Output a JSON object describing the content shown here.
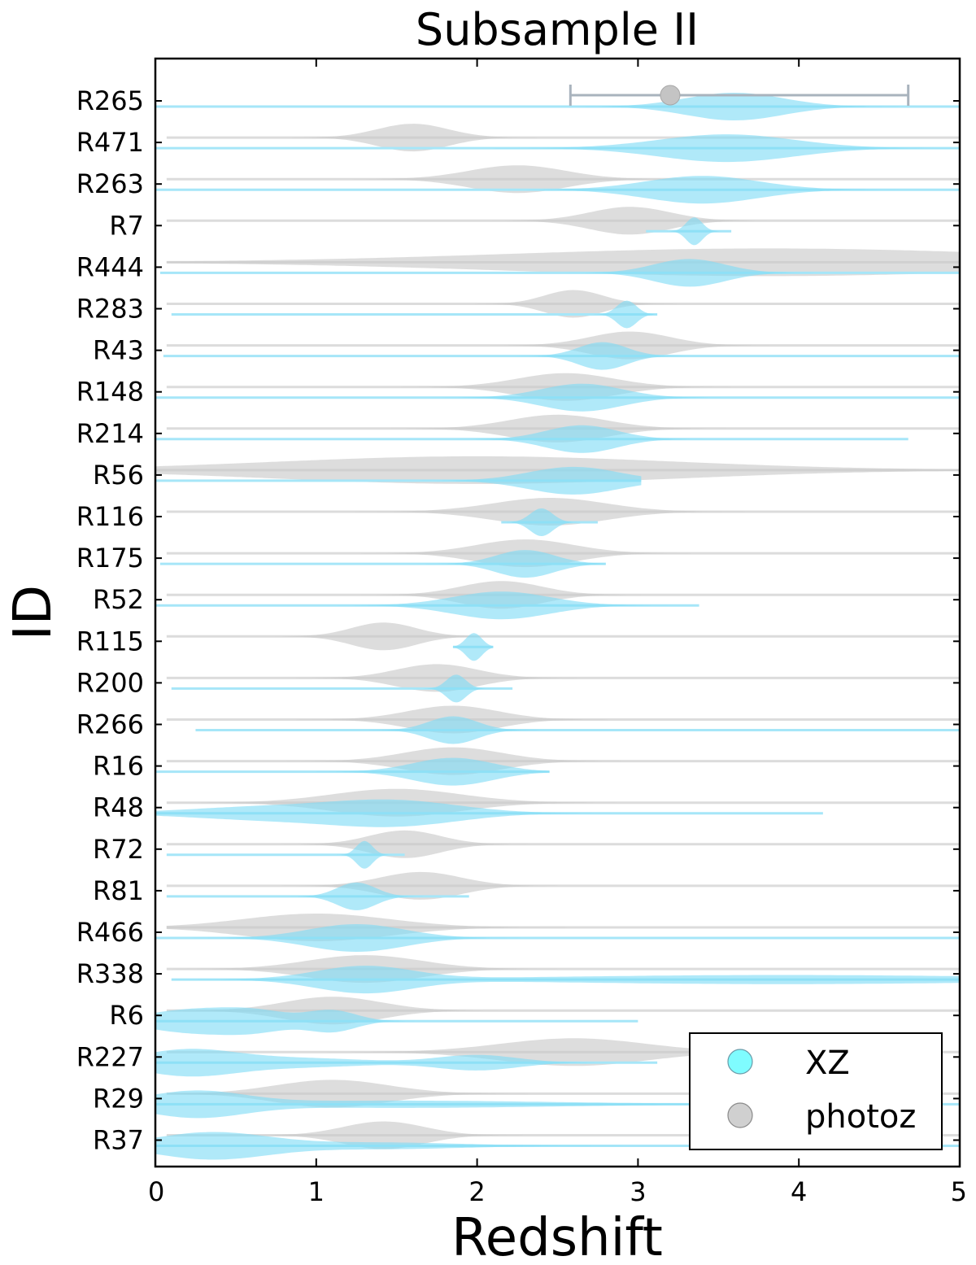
{
  "chart_data": {
    "type": "violin",
    "title": "Subsample II",
    "xlabel": "Redshift",
    "ylabel": "ID",
    "xlim": [
      0,
      5
    ],
    "xticks": [
      "0",
      "1",
      "2",
      "3",
      "4",
      "5"
    ],
    "grid": false,
    "legend_position": "bottom-right",
    "series": [
      {
        "name": "XZ",
        "color": "#7fdcf5"
      },
      {
        "name": "photoz",
        "color": "#c8c8c8"
      }
    ],
    "example_errorbar": {
      "center": 3.2,
      "low": 2.58,
      "high": 4.68
    },
    "rows": [
      {
        "id": "R265",
        "photoz": null,
        "xz": {
          "min": 0.0,
          "max": 5.0,
          "peaks": [
            [
              3.6,
              0.3,
              1.0
            ]
          ]
        }
      },
      {
        "id": "R471",
        "photoz": {
          "min": 0.07,
          "max": 5.0,
          "peaks": [
            [
              1.6,
              0.22,
              1.0
            ]
          ]
        },
        "xz": {
          "min": 0.0,
          "max": 5.0,
          "peaks": [
            [
              3.55,
              0.42,
              1.0
            ]
          ]
        }
      },
      {
        "id": "R263",
        "photoz": {
          "min": 0.07,
          "max": 5.0,
          "peaks": [
            [
              2.25,
              0.3,
              1.0
            ]
          ]
        },
        "xz": {
          "min": 0.0,
          "max": 5.0,
          "peaks": [
            [
              3.4,
              0.35,
              1.0
            ]
          ]
        }
      },
      {
        "id": "R7",
        "photoz": {
          "min": 0.07,
          "max": 5.0,
          "peaks": [
            [
              2.95,
              0.25,
              1.0
            ]
          ]
        },
        "xz": {
          "min": 3.05,
          "max": 3.58,
          "peaks": [
            [
              3.35,
              0.05,
              1.0
            ]
          ]
        }
      },
      {
        "id": "R444",
        "photoz": {
          "min": 0.07,
          "max": 5.0,
          "peaks": [
            [
              3.8,
              1.6,
              1.0
            ]
          ]
        },
        "xz": {
          "min": 0.03,
          "max": 5.0,
          "peaks": [
            [
              3.32,
              0.22,
              1.0
            ]
          ]
        }
      },
      {
        "id": "R283",
        "photoz": {
          "min": 0.07,
          "max": 5.0,
          "peaks": [
            [
              2.6,
              0.18,
              1.0
            ]
          ]
        },
        "xz": {
          "min": 0.1,
          "max": 3.12,
          "peaks": [
            [
              2.93,
              0.06,
              1.0
            ]
          ]
        }
      },
      {
        "id": "R43",
        "photoz": {
          "min": 0.07,
          "max": 5.0,
          "peaks": [
            [
              2.95,
              0.25,
              1.0
            ]
          ]
        },
        "xz": {
          "min": 0.05,
          "max": 5.0,
          "peaks": [
            [
              2.78,
              0.15,
              1.0
            ]
          ]
        }
      },
      {
        "id": "R148",
        "photoz": {
          "min": 0.07,
          "max": 5.0,
          "peaks": [
            [
              2.55,
              0.3,
              1.0
            ]
          ]
        },
        "xz": {
          "min": 0.0,
          "max": 5.0,
          "peaks": [
            [
              2.65,
              0.25,
              1.0
            ]
          ]
        }
      },
      {
        "id": "R214",
        "photoz": {
          "min": 0.07,
          "max": 5.0,
          "peaks": [
            [
              2.5,
              0.3,
              1.0
            ]
          ]
        },
        "xz": {
          "min": 0.0,
          "max": 4.68,
          "peaks": [
            [
              2.65,
              0.22,
              1.0
            ]
          ]
        }
      },
      {
        "id": "R56",
        "photoz": {
          "min": 0.0,
          "max": 5.0,
          "peaks": [
            [
              2.0,
              1.25,
              1.0
            ]
          ]
        },
        "xz": {
          "min": 0.0,
          "max": 3.02,
          "peaks": [
            [
              2.6,
              0.28,
              1.0
            ]
          ]
        }
      },
      {
        "id": "R116",
        "photoz": {
          "min": 0.07,
          "max": 5.0,
          "peaks": [
            [
              2.45,
              0.35,
              1.0
            ]
          ]
        },
        "xz": {
          "min": 2.15,
          "max": 2.75,
          "peaks": [
            [
              2.4,
              0.07,
              1.0
            ]
          ]
        }
      },
      {
        "id": "R175",
        "photoz": {
          "min": 0.07,
          "max": 5.0,
          "peaks": [
            [
              2.3,
              0.3,
              1.0
            ]
          ]
        },
        "xz": {
          "min": 0.03,
          "max": 2.8,
          "peaks": [
            [
              2.3,
              0.18,
              1.0
            ]
          ]
        }
      },
      {
        "id": "R52",
        "photoz": {
          "min": 0.07,
          "max": 5.0,
          "peaks": [
            [
              2.15,
              0.25,
              1.0
            ]
          ]
        },
        "xz": {
          "min": 0.0,
          "max": 3.38,
          "peaks": [
            [
              2.15,
              0.3,
              1.0
            ]
          ]
        }
      },
      {
        "id": "R115",
        "photoz": {
          "min": 0.07,
          "max": 5.0,
          "peaks": [
            [
              1.42,
              0.2,
              1.0
            ]
          ]
        },
        "xz": {
          "min": 1.85,
          "max": 2.1,
          "peaks": [
            [
              1.98,
              0.05,
              1.0
            ]
          ]
        }
      },
      {
        "id": "R200",
        "photoz": {
          "min": 0.07,
          "max": 5.0,
          "peaks": [
            [
              1.75,
              0.25,
              1.0
            ]
          ]
        },
        "xz": {
          "min": 0.1,
          "max": 2.22,
          "peaks": [
            [
              1.87,
              0.06,
              1.0
            ]
          ]
        }
      },
      {
        "id": "R266",
        "photoz": {
          "min": 0.07,
          "max": 5.0,
          "peaks": [
            [
              1.85,
              0.28,
              1.0
            ]
          ]
        },
        "xz": {
          "min": 0.25,
          "max": 5.0,
          "peaks": [
            [
              1.85,
              0.15,
              1.0
            ]
          ]
        }
      },
      {
        "id": "R16",
        "photoz": {
          "min": 0.07,
          "max": 5.0,
          "peaks": [
            [
              1.85,
              0.3,
              1.0
            ]
          ]
        },
        "xz": {
          "min": 0.0,
          "max": 2.45,
          "peaks": [
            [
              1.85,
              0.25,
              1.0
            ]
          ]
        }
      },
      {
        "id": "R48",
        "photoz": {
          "min": 0.07,
          "max": 5.0,
          "peaks": [
            [
              1.5,
              0.4,
              1.0
            ]
          ]
        },
        "xz": {
          "min": 0.0,
          "max": 4.15,
          "peaks": [
            [
              1.5,
              0.4,
              1.0
            ],
            [
              0.7,
              0.5,
              0.55
            ]
          ]
        }
      },
      {
        "id": "R72",
        "photoz": {
          "min": 0.07,
          "max": 5.0,
          "peaks": [
            [
              1.55,
              0.22,
              1.0
            ]
          ]
        },
        "xz": {
          "min": 0.07,
          "max": 1.55,
          "peaks": [
            [
              1.3,
              0.05,
              1.0
            ]
          ]
        }
      },
      {
        "id": "R81",
        "photoz": {
          "min": 0.07,
          "max": 5.0,
          "peaks": [
            [
              1.65,
              0.25,
              1.0
            ]
          ]
        },
        "xz": {
          "min": 0.07,
          "max": 1.95,
          "peaks": [
            [
              1.25,
              0.12,
              1.0
            ]
          ]
        }
      },
      {
        "id": "R466",
        "photoz": {
          "min": 0.07,
          "max": 5.0,
          "peaks": [
            [
              1.0,
              0.45,
              1.0
            ]
          ]
        },
        "xz": {
          "min": 0.0,
          "max": 5.0,
          "peaks": [
            [
              1.25,
              0.3,
              1.0
            ]
          ]
        }
      },
      {
        "id": "R338",
        "photoz": {
          "min": 0.07,
          "max": 5.0,
          "peaks": [
            [
              1.3,
              0.35,
              1.0
            ]
          ]
        },
        "xz": {
          "min": 0.1,
          "max": 5.0,
          "peaks": [
            [
              1.3,
              0.3,
              1.0
            ],
            [
              3.9,
              1.4,
              0.35
            ]
          ]
        }
      },
      {
        "id": "R6",
        "photoz": {
          "min": 0.07,
          "max": 5.0,
          "peaks": [
            [
              1.1,
              0.3,
              1.0
            ]
          ]
        },
        "xz": {
          "min": 0.0,
          "max": 3.0,
          "peaks": [
            [
              0.25,
              0.3,
              0.9
            ],
            [
              1.1,
              0.15,
              0.8
            ],
            [
              0.65,
              0.2,
              0.55
            ]
          ]
        }
      },
      {
        "id": "R227",
        "photoz": {
          "min": 0.07,
          "max": 5.0,
          "peaks": [
            [
              2.6,
              0.45,
              1.0
            ]
          ]
        },
        "xz": {
          "min": 0.0,
          "max": 3.12,
          "peaks": [
            [
              0.2,
              0.3,
              1.0
            ],
            [
              2.0,
              0.25,
              0.6
            ],
            [
              0.9,
              0.4,
              0.35
            ]
          ]
        }
      },
      {
        "id": "R29",
        "photoz": {
          "min": 0.07,
          "max": 5.0,
          "peaks": [
            [
              1.1,
              0.35,
              1.0
            ]
          ]
        },
        "xz": {
          "min": 0.0,
          "max": 5.0,
          "peaks": [
            [
              0.25,
              0.3,
              1.0
            ],
            [
              1.5,
              1.0,
              0.3
            ]
          ]
        }
      },
      {
        "id": "R37",
        "photoz": {
          "min": 0.07,
          "max": 5.0,
          "peaks": [
            [
              1.42,
              0.25,
              1.0
            ]
          ]
        },
        "xz": {
          "min": 0.0,
          "max": 5.0,
          "peaks": [
            [
              0.35,
              0.35,
              1.0
            ],
            [
              1.4,
              0.5,
              0.25
            ]
          ]
        }
      }
    ]
  }
}
